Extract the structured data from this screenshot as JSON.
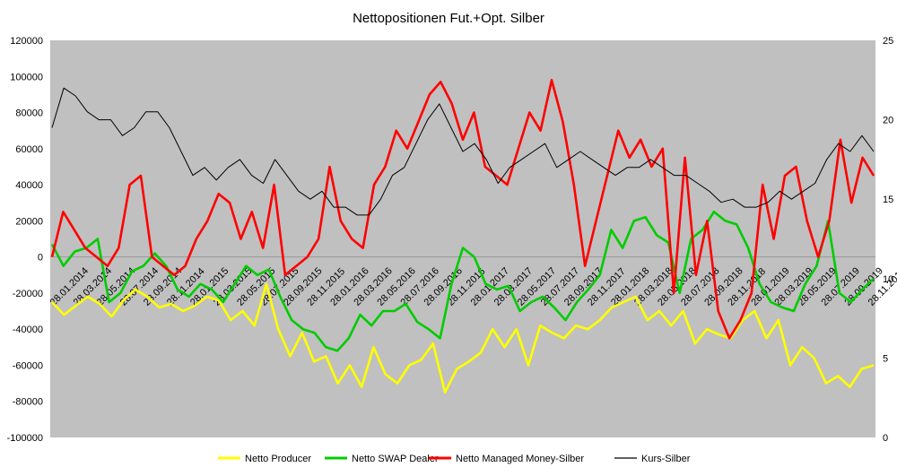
{
  "chart_data": {
    "type": "line",
    "title": "Nettopositionen Fut.+Opt. Silber",
    "xlabel": "",
    "ylabel": "",
    "y_left_lim": [
      -100000,
      120000
    ],
    "y_left_ticks": [
      "120000",
      "100000",
      "80000",
      "60000",
      "40000",
      "20000",
      "0",
      "-20000",
      "-40000",
      "-60000",
      "-80000",
      "-100000"
    ],
    "y_right_lim": [
      0,
      25
    ],
    "y_right_ticks": [
      "25",
      "20",
      "15",
      "10",
      "5",
      "0"
    ],
    "x_ticks": [
      "28.01.2014",
      "28.03.2014",
      "28.05.2014",
      "28.07.2014",
      "28.09.2014",
      "28.11.2014",
      "28.01.2015",
      "28.03.2015",
      "28.05.2015",
      "28.07.2015",
      "28.09.2015",
      "28.11.2015",
      "28.01.2016",
      "28.03.2016",
      "28.05.2016",
      "28.07.2016",
      "28.09.2016",
      "28.11.2016",
      "28.01.2017",
      "28.03.2017",
      "28.05.2017",
      "28.07.2017",
      "28.09.2017",
      "28.11.2017",
      "28.01.2018",
      "28.03.2018",
      "28.05.2018",
      "28.07.2018",
      "28.09.2018",
      "28.11.2018",
      "28.01.2019",
      "28.03.2019",
      "28.05.2019",
      "28.07.2019",
      "28.09.2019",
      "28.11.2019"
    ],
    "grid": false,
    "legend_position": "bottom",
    "plot_background": "#c0c0c0",
    "series": [
      {
        "name": "Netto Producer",
        "color": "#ffff00",
        "axis": "left",
        "values": [
          -25000,
          -32000,
          -27000,
          -22000,
          -26000,
          -33000,
          -24000,
          -18000,
          -22000,
          -28000,
          -26000,
          -30000,
          -27000,
          -22000,
          -24000,
          -35000,
          -30000,
          -38000,
          -15000,
          -40000,
          -55000,
          -42000,
          -58000,
          -55000,
          -70000,
          -60000,
          -72000,
          -50000,
          -65000,
          -70000,
          -60000,
          -57000,
          -48000,
          -75000,
          -62000,
          -58000,
          -53000,
          -40000,
          -50000,
          -40000,
          -60000,
          -38000,
          -42000,
          -45000,
          -38000,
          -40000,
          -35000,
          -28000,
          -25000,
          -22000,
          -35000,
          -30000,
          -38000,
          -30000,
          -48000,
          -40000,
          -43000,
          -45000,
          -35000,
          -30000,
          -45000,
          -35000,
          -60000,
          -50000,
          -56000,
          -70000,
          -66000,
          -72000,
          -62000,
          -60000
        ]
      },
      {
        "name": "Netto SWAP Dealer",
        "color": "#00cc00",
        "axis": "left",
        "values": [
          7000,
          -5000,
          3000,
          5000,
          10000,
          -25000,
          -20000,
          -8000,
          -5000,
          2000,
          -5000,
          -18000,
          -22000,
          -15000,
          -18000,
          -25000,
          -15000,
          -5000,
          -10000,
          -7000,
          -22000,
          -35000,
          -40000,
          -42000,
          -50000,
          -52000,
          -45000,
          -32000,
          -38000,
          -30000,
          -30000,
          -26000,
          -36000,
          -40000,
          -45000,
          -15000,
          5000,
          0,
          -15000,
          -18000,
          -16000,
          -30000,
          -25000,
          -22000,
          -28000,
          -35000,
          -25000,
          -18000,
          -10000,
          15000,
          5000,
          20000,
          22000,
          12000,
          8000,
          -20000,
          10000,
          15000,
          25000,
          20000,
          18000,
          5000,
          -15000,
          -25000,
          -28000,
          -30000,
          -15000,
          -5000,
          20000,
          -20000,
          -25000,
          -18000,
          -12000
        ]
      },
      {
        "name": "Netto Managed Money-Silber",
        "color": "#ff0000",
        "axis": "left",
        "values": [
          0,
          25000,
          15000,
          5000,
          0,
          -5000,
          5000,
          40000,
          45000,
          0,
          -5000,
          -10000,
          -5000,
          10000,
          20000,
          35000,
          30000,
          10000,
          25000,
          5000,
          40000,
          -10000,
          -5000,
          0,
          10000,
          50000,
          20000,
          10000,
          5000,
          40000,
          50000,
          70000,
          60000,
          75000,
          90000,
          97000,
          85000,
          65000,
          80000,
          50000,
          45000,
          40000,
          60000,
          80000,
          70000,
          98000,
          75000,
          40000,
          -5000,
          20000,
          45000,
          70000,
          55000,
          65000,
          50000,
          60000,
          -20000,
          55000,
          -10000,
          20000,
          -30000,
          -45000,
          -35000,
          -20000,
          40000,
          10000,
          45000,
          50000,
          20000,
          0,
          20000,
          65000,
          30000,
          55000,
          45000
        ]
      },
      {
        "name": "Kurs-Silber",
        "color": "#000000",
        "axis": "right",
        "values": [
          19.5,
          22,
          21.5,
          20.5,
          20,
          20,
          19,
          19.5,
          20.5,
          20.5,
          19.5,
          18,
          16.5,
          17,
          16.2,
          17,
          17.5,
          16.5,
          16,
          17.5,
          16.5,
          15.5,
          15,
          15.5,
          14.5,
          14.5,
          14,
          14,
          15,
          16.5,
          17,
          18.5,
          20,
          21,
          19.5,
          18,
          18.5,
          17.5,
          16,
          17,
          17.5,
          18,
          18.5,
          17,
          17.5,
          18,
          17.5,
          17,
          16.5,
          17,
          17,
          17.5,
          17,
          16.5,
          16.5,
          16,
          15.5,
          14.8,
          15,
          14.5,
          14.5,
          14.8,
          15.5,
          15,
          15.5,
          16,
          17.5,
          18.5,
          18,
          19,
          18
        ]
      }
    ]
  }
}
